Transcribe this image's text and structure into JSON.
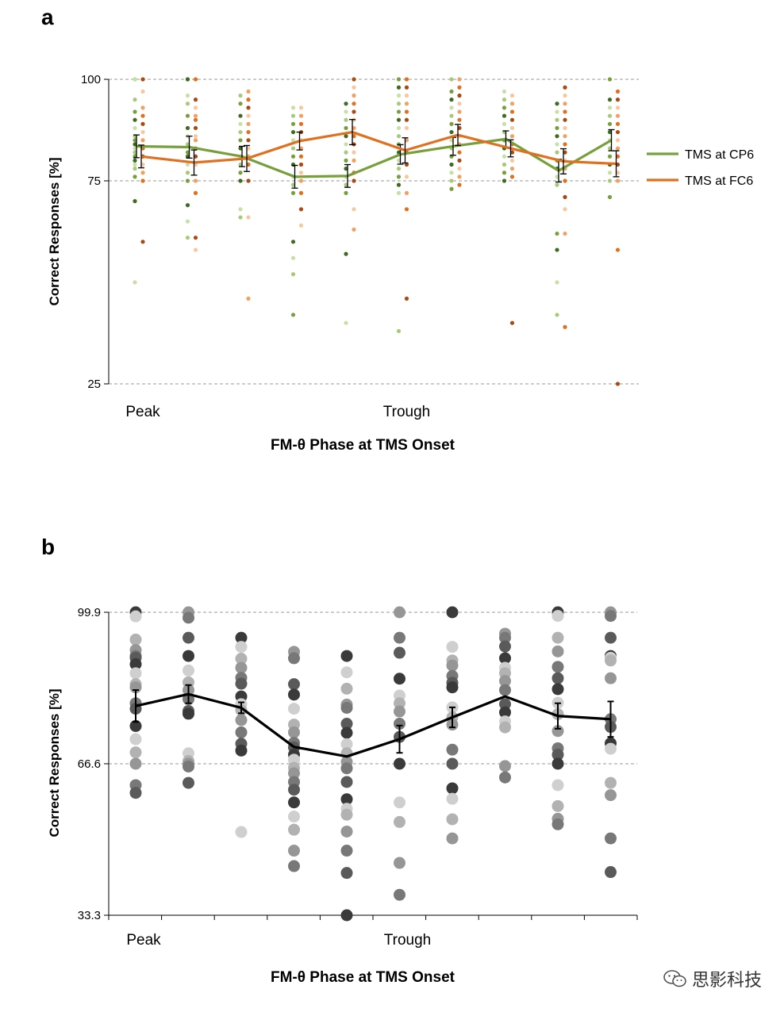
{
  "panels": {
    "a": {
      "letter": "a"
    },
    "b": {
      "letter": "b"
    }
  },
  "watermark": {
    "text": "思影科技",
    "icon": "wechat-icon"
  },
  "chart_data": [
    {
      "panel": "a",
      "type": "line",
      "xlabel": "FM-θ Phase at TMS Onset",
      "ylabel": "Correct Responses [%]",
      "ylim": [
        25,
        100
      ],
      "yticks": [
        25,
        75,
        100
      ],
      "x_tick_labels": [
        {
          "index": 0,
          "label": "Peak"
        },
        {
          "index": 5,
          "label": "Trough"
        }
      ],
      "n_bins": 10,
      "grid": "horizontal dashed at y ticks",
      "legend_position": "right",
      "series": [
        {
          "name": "TMS at CP6",
          "color": "#77A03C",
          "values": [
            83.5,
            83.3,
            81,
            76,
            76.2,
            81.5,
            83.5,
            85.3,
            77.5,
            85
          ],
          "errors": [
            2.8,
            2.7,
            2.5,
            2.8,
            2.8,
            2.4,
            2.2,
            2.0,
            2.8,
            2.6
          ]
        },
        {
          "name": "TMS at FC6",
          "color": "#E07020",
          "values": [
            81,
            79.5,
            80.5,
            84.8,
            87,
            82.5,
            86.3,
            83,
            79.8,
            79.2
          ],
          "errors": [
            2.8,
            3.1,
            3.2,
            2.2,
            3.1,
            3.1,
            2.6,
            2.1,
            3.1,
            3.2
          ]
        }
      ],
      "points": [
        {
          "bin": 0,
          "series": "CP6",
          "values": [
            100,
            100,
            95,
            92,
            90,
            88,
            86,
            85,
            84,
            83,
            82,
            81,
            80,
            79,
            78,
            76,
            70,
            50
          ]
        },
        {
          "bin": 0,
          "series": "FC6",
          "values": [
            100,
            97,
            93,
            91,
            89,
            87,
            85,
            83,
            81,
            79,
            77,
            75,
            60
          ]
        },
        {
          "bin": 1,
          "series": "CP6",
          "values": [
            100,
            100,
            96,
            94,
            91,
            88,
            86,
            84,
            82,
            81,
            79,
            77,
            75,
            69,
            65,
            61
          ]
        },
        {
          "bin": 1,
          "series": "FC6",
          "values": [
            100,
            95,
            93,
            91,
            90,
            88,
            86,
            85,
            83,
            81,
            79,
            75,
            72,
            61,
            58
          ]
        },
        {
          "bin": 2,
          "series": "CP6",
          "values": [
            96,
            94,
            91,
            89,
            87,
            85,
            83,
            81,
            79,
            77,
            75,
            68,
            66
          ]
        },
        {
          "bin": 2,
          "series": "FC6",
          "values": [
            97,
            95,
            93,
            91,
            89,
            87,
            85,
            83,
            81,
            79,
            75,
            66,
            46
          ]
        },
        {
          "bin": 3,
          "series": "CP6",
          "values": [
            93,
            91,
            89,
            87,
            85,
            83,
            81,
            79,
            76,
            74,
            72,
            60,
            56,
            52,
            42
          ]
        },
        {
          "bin": 3,
          "series": "FC6",
          "values": [
            93,
            91,
            89,
            87,
            85,
            83,
            81,
            79,
            77,
            75,
            72,
            68,
            64
          ]
        },
        {
          "bin": 4,
          "series": "CP6",
          "values": [
            94,
            92,
            90,
            88,
            86,
            84,
            82,
            80,
            78,
            76,
            74,
            72,
            57,
            40
          ]
        },
        {
          "bin": 4,
          "series": "FC6",
          "values": [
            100,
            98,
            96,
            94,
            92,
            90,
            88,
            86,
            84,
            82,
            80,
            77,
            75,
            68,
            63
          ]
        },
        {
          "bin": 5,
          "series": "CP6",
          "values": [
            100,
            98,
            96,
            94,
            92,
            90,
            88,
            86,
            84,
            82,
            80,
            78,
            76,
            74,
            72,
            38
          ]
        },
        {
          "bin": 5,
          "series": "FC6",
          "values": [
            100,
            98,
            96,
            94,
            92,
            90,
            88,
            85,
            82,
            79,
            76,
            72,
            68,
            46
          ]
        },
        {
          "bin": 6,
          "series": "CP6",
          "values": [
            100,
            97,
            95,
            93,
            91,
            89,
            87,
            85,
            83,
            81,
            79,
            77,
            75,
            73
          ]
        },
        {
          "bin": 6,
          "series": "FC6",
          "values": [
            100,
            98,
            96,
            94,
            92,
            90,
            88,
            86,
            84,
            82,
            80,
            78,
            76,
            74
          ]
        },
        {
          "bin": 7,
          "series": "CP6",
          "values": [
            97,
            95,
            93,
            91,
            89,
            87,
            85,
            83,
            81,
            79,
            77,
            75
          ]
        },
        {
          "bin": 7,
          "series": "FC6",
          "values": [
            96,
            94,
            92,
            90,
            88,
            86,
            84,
            82,
            80,
            78,
            76,
            40
          ]
        },
        {
          "bin": 8,
          "series": "CP6",
          "values": [
            94,
            92,
            90,
            88,
            86,
            84,
            82,
            80,
            78,
            76,
            74,
            62,
            58,
            50,
            42
          ]
        },
        {
          "bin": 8,
          "series": "FC6",
          "values": [
            98,
            96,
            94,
            92,
            90,
            88,
            86,
            84,
            82,
            80,
            78,
            75,
            71,
            68,
            62,
            39
          ]
        },
        {
          "bin": 9,
          "series": "CP6",
          "values": [
            100,
            95,
            93,
            91,
            89,
            87,
            85,
            83,
            81,
            79,
            77,
            75,
            71
          ]
        },
        {
          "bin": 9,
          "series": "FC6",
          "values": [
            97,
            95,
            93,
            91,
            89,
            87,
            85,
            83,
            81,
            79,
            77,
            75,
            58,
            25
          ]
        }
      ]
    },
    {
      "panel": "b",
      "type": "line",
      "xlabel": "FM-θ Phase at TMS Onset",
      "ylabel": "Correct Responses [%]",
      "ylim": [
        33.3,
        99.9
      ],
      "yticks": [
        33.3,
        66.6,
        99.9
      ],
      "x_tick_labels": [
        {
          "index": 0,
          "label": "Peak"
        },
        {
          "index": 5,
          "label": "Trough"
        }
      ],
      "n_bins": 10,
      "grid": "horizontal dashed at y ticks",
      "series": [
        {
          "name": "",
          "color": "#000000",
          "values": [
            79.3,
            81.9,
            78.9,
            70.3,
            68.2,
            72.0,
            76.8,
            81.4,
            77.1,
            76.4
          ],
          "errors": [
            3.5,
            2.0,
            1.2,
            0.0,
            0.0,
            3.0,
            2.2,
            0.0,
            2.8,
            3.9
          ]
        }
      ],
      "points": [
        {
          "bin": 0,
          "values": [
            99.9,
            99.0,
            93.9,
            91.6,
            90.3,
            89.9,
            88.5,
            86.5,
            84.1,
            83.4,
            79.9,
            78.7,
            74.9,
            72.0,
            69.1,
            66.6,
            61.9,
            60.2
          ]
        },
        {
          "bin": 1,
          "values": [
            99.9,
            98.7,
            94.3,
            90.3,
            87.1,
            84.5,
            82.8,
            80.8,
            78.2,
            77.6,
            68.9,
            67.2,
            66.6,
            66.0,
            62.4
          ]
        },
        {
          "bin": 2,
          "values": [
            94.3,
            92.3,
            89.7,
            87.7,
            85.5,
            84.2,
            81.4,
            79.7,
            78.4,
            76.2,
            73.5,
            71.0,
            69.5,
            51.6
          ]
        },
        {
          "bin": 3,
          "values": [
            91.2,
            89.8,
            84.1,
            81.8,
            78.7,
            75.2,
            73.5,
            71.2,
            70.2,
            68.6,
            67.5,
            65.7,
            64.5,
            62.6,
            60.9,
            58.1,
            55.0,
            52.1,
            47.5,
            44.1
          ]
        },
        {
          "bin": 4,
          "values": [
            90.3,
            86.7,
            83.1,
            79.6,
            78.9,
            75.4,
            73.4,
            70.9,
            68.9,
            67.0,
            65.6,
            62.6,
            58.8,
            56.7,
            55.4,
            51.7,
            47.5,
            42.6,
            33.3
          ]
        },
        {
          "bin": 5,
          "values": [
            99.9,
            94.3,
            91.0,
            85.3,
            81.6,
            79.9,
            78.1,
            75.4,
            72.5,
            66.6,
            58.1,
            53.8,
            44.8,
            37.8
          ]
        },
        {
          "bin": 6,
          "values": [
            99.9,
            92.3,
            89.3,
            88.2,
            85.9,
            84.4,
            83.4,
            79.0,
            76.8,
            75.2,
            69.7,
            66.6,
            61.2,
            58.9,
            54.4,
            50.2
          ]
        },
        {
          "bin": 7,
          "values": [
            95.2,
            94.3,
            92.4,
            89.8,
            87.7,
            86.5,
            84.8,
            82.8,
            79.7,
            77.9,
            75.9,
            74.6,
            66.1,
            63.6
          ]
        },
        {
          "bin": 8,
          "values": [
            99.9,
            99.1,
            94.3,
            91.3,
            87.9,
            85.4,
            83.0,
            80.0,
            77.5,
            73.8,
            70.0,
            68.6,
            66.6,
            61.9,
            57.3,
            54.5,
            53.3
          ]
        },
        {
          "bin": 9,
          "values": [
            99.9,
            99.1,
            94.3,
            90.3,
            89.9,
            89.3,
            85.4,
            76.4,
            74.7,
            71.1,
            69.9,
            62.4,
            59.7,
            50.2,
            42.8
          ]
        }
      ]
    }
  ]
}
